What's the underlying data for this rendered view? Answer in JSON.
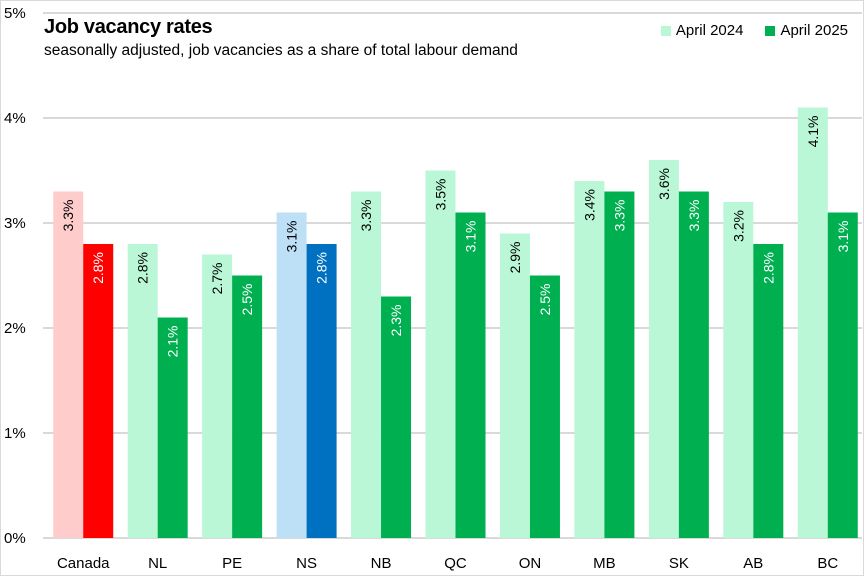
{
  "chart_data": {
    "type": "bar",
    "title": "Job vacancy rates",
    "subtitle": "seasonally adjusted, job vacancies as a share of total labour demand",
    "xlabel": "",
    "ylabel": "",
    "ylim": [
      0,
      5
    ],
    "yticks": [
      0,
      1,
      2,
      3,
      4,
      5
    ],
    "ytick_labels": [
      "0%",
      "1%",
      "2%",
      "3%",
      "4%",
      "5%"
    ],
    "grid": true,
    "legend_position": "top-right",
    "categories": [
      "Canada",
      "NL",
      "PE",
      "NS",
      "NB",
      "QC",
      "ON",
      "MB",
      "SK",
      "AB",
      "BC"
    ],
    "series": [
      {
        "name": "April 2024",
        "color": "#b9f7d6",
        "values": [
          3.3,
          2.8,
          2.7,
          3.1,
          3.3,
          3.5,
          2.9,
          3.4,
          3.6,
          3.2,
          4.1
        ],
        "labels": [
          "3.3%",
          "2.8%",
          "2.7%",
          "3.1%",
          "3.3%",
          "3.5%",
          "2.9%",
          "3.4%",
          "3.6%",
          "3.2%",
          "4.1%"
        ],
        "highlight_colors": {
          "Canada": "#ffcccc",
          "NS": "#bde0f7"
        },
        "label_color": "#000000"
      },
      {
        "name": "April 2025",
        "color": "#00b050",
        "values": [
          2.8,
          2.1,
          2.5,
          2.8,
          2.3,
          3.1,
          2.5,
          3.3,
          3.3,
          2.8,
          3.1
        ],
        "labels": [
          "2.8%",
          "2.1%",
          "2.5%",
          "2.8%",
          "2.3%",
          "3.1%",
          "2.5%",
          "3.3%",
          "3.3%",
          "2.8%",
          "3.1%"
        ],
        "highlight_colors": {
          "Canada": "#ff0000",
          "NS": "#0070c0"
        },
        "label_color": "#ffffff"
      }
    ],
    "colors": {
      "gridline": "#d9d9d9",
      "axis_text": "#000000"
    }
  }
}
